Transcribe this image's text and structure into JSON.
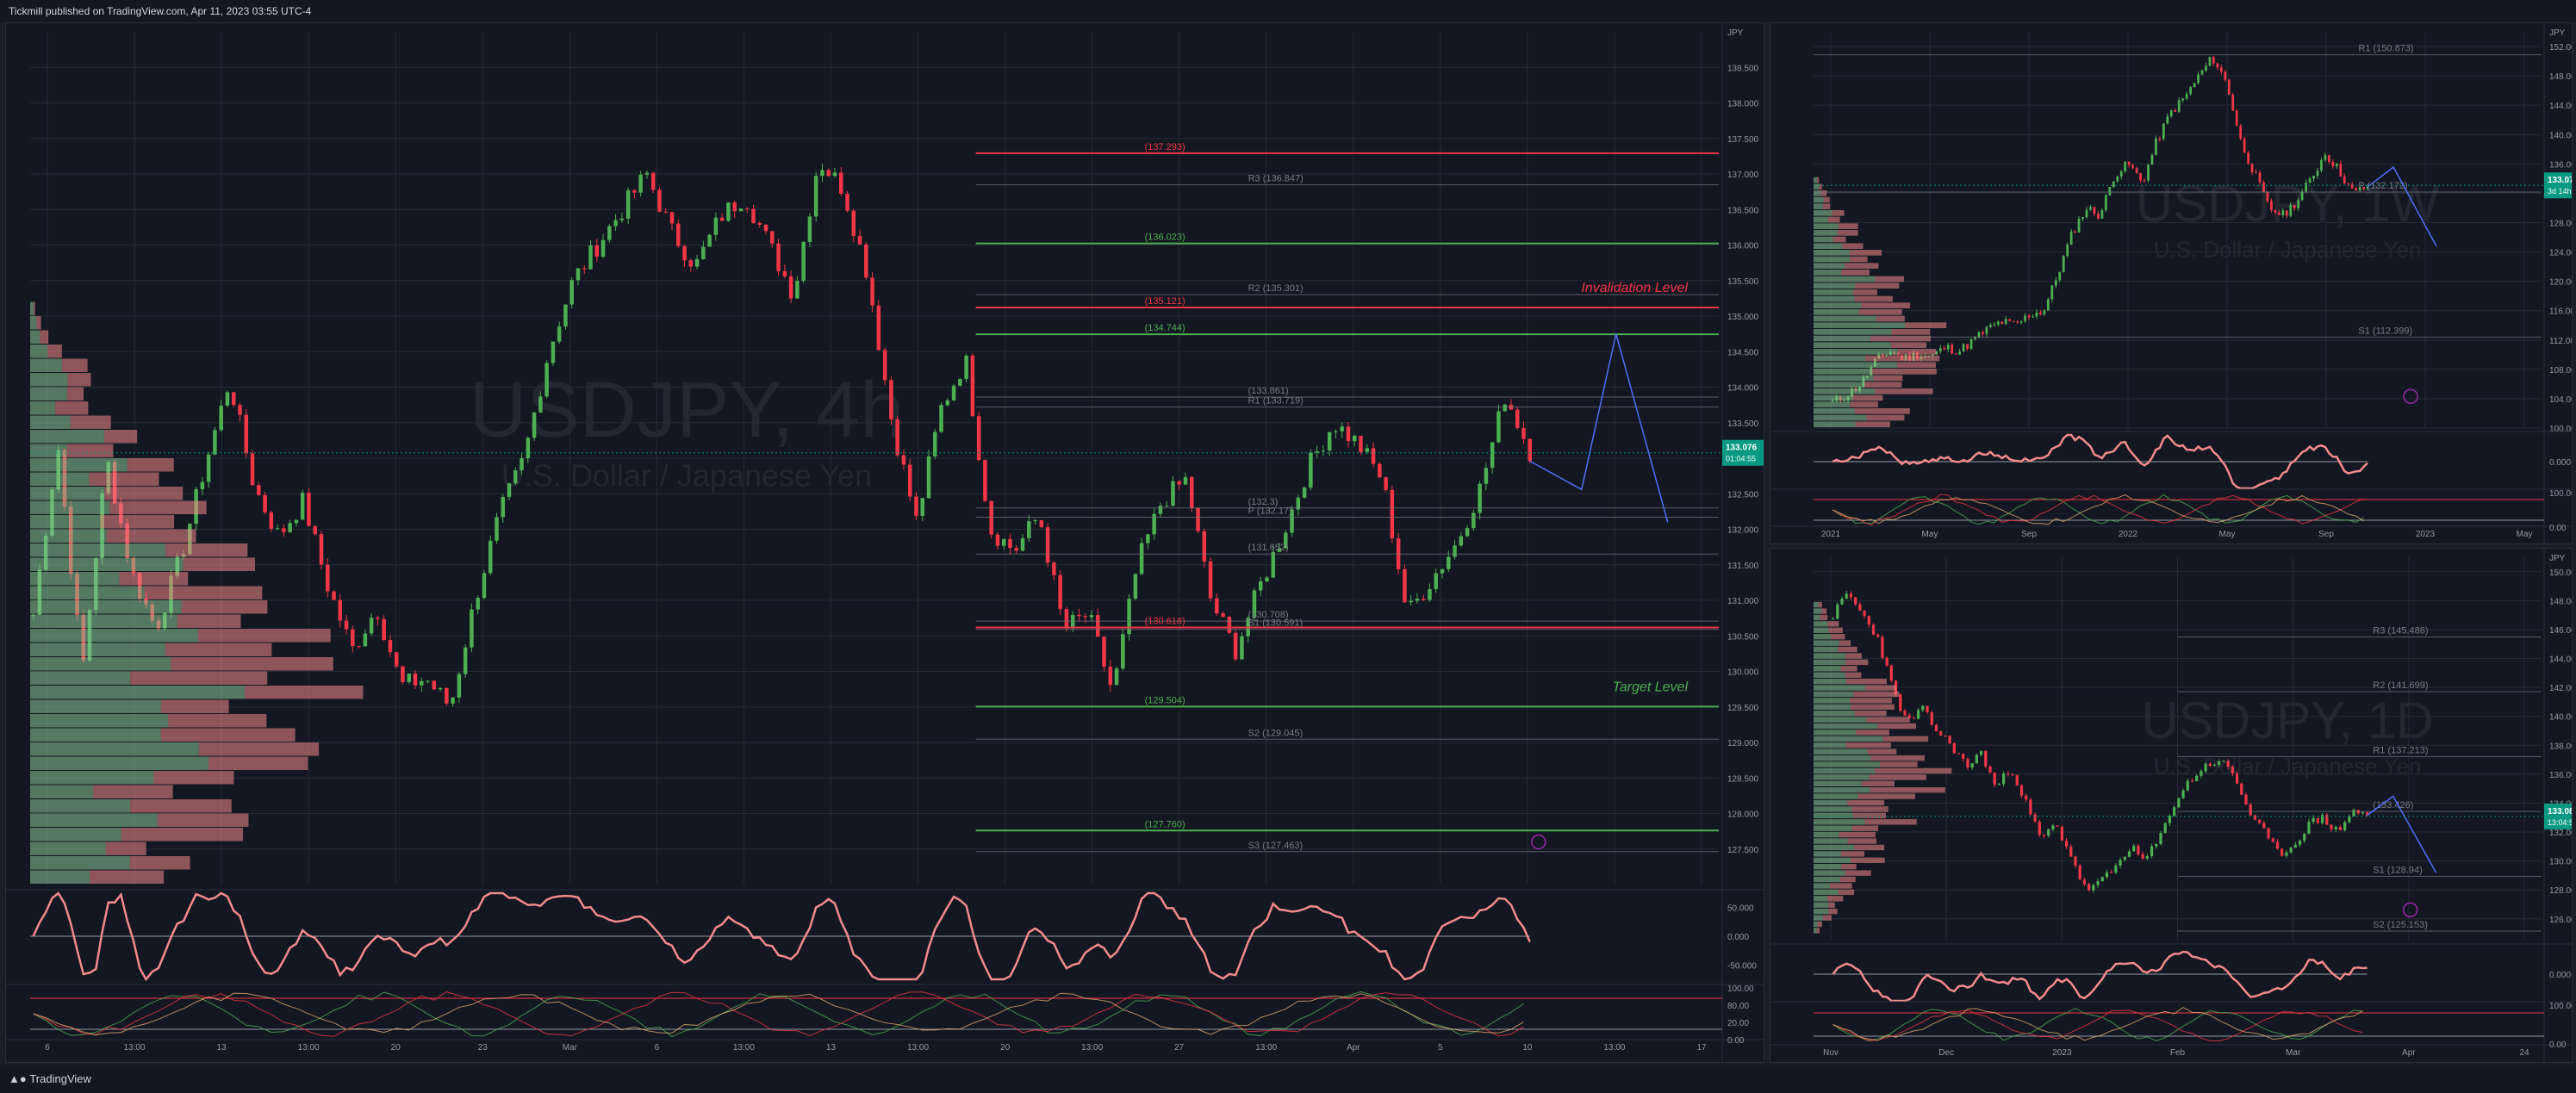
{
  "header": {
    "published": "Tickmill published on TradingView.com, Apr 11, 2023 03:55 UTC-4"
  },
  "footer": {
    "logo": "TradingView"
  },
  "colors": {
    "up": "#4caf50",
    "down": "#f23645",
    "vol_up": "#8bc995",
    "vol_down": "#f48a8a",
    "grid": "#262a35",
    "axis_text": "#9598a1",
    "bg": "#131722"
  },
  "chart_data": [
    {
      "type": "candlestick",
      "symbol": "USDJPY, 4h",
      "subtitle": "U.S. Dollar / Japanese Yen",
      "currency": "JPY",
      "ylim": [
        127.0,
        139.0
      ],
      "y_ticks": [
        "138.500",
        "138.000",
        "137.500",
        "137.000",
        "136.500",
        "136.000",
        "135.500",
        "135.000",
        "134.500",
        "134.000",
        "133.500",
        "133.000",
        "132.500",
        "132.000",
        "131.500",
        "131.000",
        "130.500",
        "130.000",
        "129.500",
        "129.000",
        "128.500",
        "128.000",
        "127.500"
      ],
      "x_ticks": [
        "6",
        "13:00",
        "13",
        "13:00",
        "20",
        "23",
        "Mar",
        "6",
        "13:00",
        "13",
        "13:00",
        "20",
        "13:00",
        "27",
        "13:00",
        "Apr",
        "5",
        "10",
        "13:00",
        "17"
      ],
      "last_price": "133.076",
      "countdown": "01:04:55",
      "levels": [
        {
          "label": "(137.293)",
          "value": 137.293,
          "color": "#f23645"
        },
        {
          "label": "R3 (136.847)",
          "value": 136.847,
          "color": "#787b86"
        },
        {
          "label": "(136.023)",
          "value": 136.023,
          "color": "#4caf50"
        },
        {
          "label": "R2 (135.301)",
          "value": 135.301,
          "color": "#787b86"
        },
        {
          "label": "(135.121)",
          "value": 135.121,
          "color": "#f23645"
        },
        {
          "label": "(134.744)",
          "value": 134.744,
          "color": "#4caf50"
        },
        {
          "label": "(133.861)",
          "value": 133.861,
          "color": "#787b86"
        },
        {
          "label": "R1 (133.719)",
          "value": 133.719,
          "color": "#787b86"
        },
        {
          "label": "(132.3)",
          "value": 132.3,
          "color": "#787b86"
        },
        {
          "label": "P (132.17)",
          "value": 132.17,
          "color": "#787b86"
        },
        {
          "label": "(131.652)",
          "value": 131.652,
          "color": "#787b86"
        },
        {
          "label": "(130.708)",
          "value": 130.708,
          "color": "#787b86"
        },
        {
          "label": "(130.618)",
          "value": 130.618,
          "color": "#f23645"
        },
        {
          "label": "S1 (130.591)",
          "value": 130.591,
          "color": "#787b86"
        },
        {
          "label": "(129.504)",
          "value": 129.504,
          "color": "#4caf50"
        },
        {
          "label": "S2 (129.045)",
          "value": 129.045,
          "color": "#787b86"
        },
        {
          "label": "(127.760)",
          "value": 127.76,
          "color": "#4caf50"
        },
        {
          "label": "S3 (127.463)",
          "value": 127.463,
          "color": "#787b86"
        }
      ],
      "annotations": [
        {
          "text": "Invalidation Level",
          "value": 135.121,
          "color": "#f23645"
        },
        {
          "text": "Target Level",
          "value": 129.504,
          "color": "#4caf50"
        }
      ],
      "oscillator_ticks": [
        "50.000",
        "0.000",
        "-50.000"
      ],
      "stoch_ticks": [
        "100.00",
        "80.00",
        "20.00",
        "0.00"
      ],
      "path_anchors": [
        130.8,
        133.2,
        130.0,
        133.0,
        131.4,
        130.6,
        131.6,
        132.9,
        134.1,
        132.6,
        131.9,
        132.4,
        131.2,
        130.3,
        130.9,
        129.8,
        129.9,
        129.5,
        131.0,
        132.2,
        133.0,
        134.5,
        135.5,
        136.0,
        136.5,
        137.0,
        136.2,
        135.7,
        136.4,
        136.7,
        136.0,
        135.3,
        137.2,
        136.8,
        135.6,
        133.5,
        132.1,
        133.7,
        134.4,
        132.0,
        131.7,
        132.2,
        130.6,
        130.8,
        129.7,
        131.5,
        132.4,
        132.7,
        131.0,
        130.3,
        131.2,
        132.0,
        132.9,
        133.5,
        133.2,
        132.7,
        130.8,
        131.3,
        131.8,
        132.6,
        133.9,
        133.1
      ]
    },
    {
      "type": "candlestick",
      "symbol": "USDJPY, 1W",
      "subtitle": "U.S. Dollar / Japanese Yen",
      "currency": "JPY",
      "ylim": [
        100.0,
        154.0
      ],
      "y_ticks": [
        "152.000",
        "148.000",
        "144.000",
        "140.000",
        "136.000",
        "132.000",
        "128.000",
        "124.000",
        "120.000",
        "116.000",
        "112.000",
        "108.000",
        "104.000",
        "100.000"
      ],
      "x_ticks": [
        "2021",
        "May",
        "Sep",
        "2022",
        "May",
        "Sep",
        "2023",
        "May"
      ],
      "last_price": "133.076",
      "countdown": "3d 14h",
      "levels": [
        {
          "label": "R1 (150.873)",
          "value": 150.873,
          "color": "#787b86"
        },
        {
          "label": "P (132.172)",
          "value": 132.172,
          "color": "#787b86"
        },
        {
          "label": "S1 (112.399)",
          "value": 112.399,
          "color": "#787b86"
        }
      ],
      "oscillator_ticks": [
        "0.000"
      ],
      "stoch_ticks": [
        "100.00",
        "0.00"
      ],
      "path_anchors": [
        103.5,
        104.5,
        106.0,
        109.0,
        110.5,
        109.5,
        110.0,
        109.8,
        111.0,
        110.5,
        112.0,
        113.5,
        114.5,
        114.0,
        115.5,
        116.0,
        121.0,
        126.5,
        130.0,
        129.0,
        134.5,
        136.0,
        133.5,
        139.0,
        143.0,
        145.0,
        148.0,
        150.5,
        147.0,
        139.0,
        134.5,
        130.0,
        129.0,
        131.0,
        134.0,
        137.5,
        135.0,
        132.0,
        133.0
      ]
    },
    {
      "type": "candlestick",
      "symbol": "USDJPY, 1D",
      "subtitle": "U.S. Dollar / Japanese Yen",
      "currency": "JPY",
      "ylim": [
        124.5,
        151.0
      ],
      "y_ticks": [
        "150.000",
        "148.000",
        "146.000",
        "144.000",
        "142.000",
        "140.000",
        "138.000",
        "136.000",
        "134.000",
        "132.000",
        "130.000",
        "128.000",
        "126.000"
      ],
      "x_ticks": [
        "Nov",
        "Dec",
        "2023",
        "Feb",
        "Mar",
        "Apr",
        "24"
      ],
      "last_price": "133.080",
      "countdown": "13:04:55",
      "levels": [
        {
          "label": "R3 (145.486)",
          "value": 145.486,
          "color": "#787b86"
        },
        {
          "label": "R2 (141.699)",
          "value": 141.699,
          "color": "#787b86"
        },
        {
          "label": "R1 (137.213)",
          "value": 137.213,
          "color": "#787b86"
        },
        {
          "label": "(133.426)",
          "value": 133.426,
          "color": "#787b86"
        },
        {
          "label": "S1 (128.94)",
          "value": 128.94,
          "color": "#787b86"
        },
        {
          "label": "S2 (125.153)",
          "value": 125.153,
          "color": "#787b86"
        }
      ],
      "oscillator_ticks": [
        "0.000"
      ],
      "stoch_ticks": [
        "100.00",
        "0.00"
      ],
      "path_anchors": [
        147.0,
        148.5,
        147.0,
        145.5,
        142.0,
        139.5,
        140.5,
        139.0,
        138.0,
        136.5,
        137.5,
        135.0,
        136.5,
        134.0,
        131.5,
        132.5,
        130.5,
        128.0,
        128.5,
        129.5,
        131.0,
        130.0,
        131.5,
        134.0,
        135.5,
        136.5,
        137.0,
        136.0,
        133.5,
        132.0,
        130.5,
        131.0,
        132.5,
        133.0,
        132.0,
        133.5,
        133.08
      ]
    }
  ]
}
